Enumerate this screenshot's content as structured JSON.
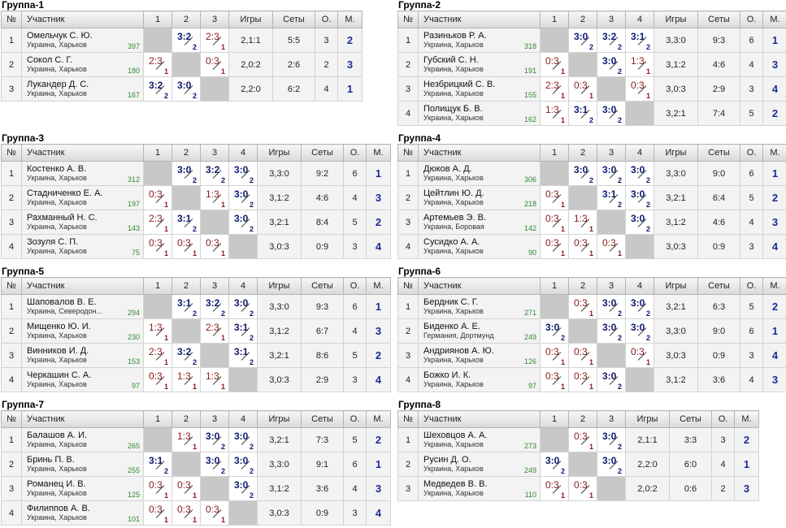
{
  "header_labels": {
    "no": "№",
    "name": "Участник",
    "games": "Игры",
    "sets": "Сеты",
    "points": "О.",
    "place": "М."
  },
  "groups": [
    {
      "title": "Группа-1",
      "players": [
        {
          "no": "1",
          "name": "Омельчук С. Ю.",
          "loc": "Украина, Харьков",
          "rating": "397",
          "results": [
            null,
            "3:2|2",
            "2:3|1"
          ],
          "games": "2,1:1",
          "sets": "5:5",
          "points": "3",
          "place": "2"
        },
        {
          "no": "2",
          "name": "Сокол С. Г.",
          "loc": "Украина, Харьков",
          "rating": "180",
          "results": [
            "2:3|1",
            null,
            "0:3|1"
          ],
          "games": "2,0:2",
          "sets": "2:6",
          "points": "2",
          "place": "3"
        },
        {
          "no": "3",
          "name": "Лукандер Д. С.",
          "loc": "Украина, Харьков",
          "rating": "167",
          "results": [
            "3:2|2",
            "3:0|2",
            null
          ],
          "games": "2,2:0",
          "sets": "6:2",
          "points": "4",
          "place": "1"
        }
      ]
    },
    {
      "title": "Группа-2",
      "players": [
        {
          "no": "1",
          "name": "Разиньков Р. А.",
          "loc": "Украина, Харьков",
          "rating": "318",
          "results": [
            null,
            "3:0|2",
            "3:2|2",
            "3:1|2"
          ],
          "games": "3,3:0",
          "sets": "9:3",
          "points": "6",
          "place": "1"
        },
        {
          "no": "2",
          "name": "Губский С. Н.",
          "loc": "Украина, Харьков",
          "rating": "191",
          "results": [
            "0:3|1",
            null,
            "3:0|2",
            "1:3|1"
          ],
          "games": "3,1:2",
          "sets": "4:6",
          "points": "4",
          "place": "3"
        },
        {
          "no": "3",
          "name": "Незбрицкий С. В.",
          "loc": "Украина, Харьков",
          "rating": "155",
          "results": [
            "2:3|1",
            "0:3|1",
            null,
            "0:3|1"
          ],
          "games": "3,0:3",
          "sets": "2:9",
          "points": "3",
          "place": "4"
        },
        {
          "no": "4",
          "name": "Полищук Б. В.",
          "loc": "Украина, Харьков",
          "rating": "162",
          "results": [
            "1:3|1",
            "3:1|2",
            "3:0|2",
            null
          ],
          "games": "3,2:1",
          "sets": "7:4",
          "points": "5",
          "place": "2"
        }
      ]
    },
    {
      "title": "Группа-3",
      "players": [
        {
          "no": "1",
          "name": "Костенко А. В.",
          "loc": "Украина, Харьков",
          "rating": "312",
          "results": [
            null,
            "3:0|2",
            "3:2|2",
            "3:0|2"
          ],
          "games": "3,3:0",
          "sets": "9:2",
          "points": "6",
          "place": "1"
        },
        {
          "no": "2",
          "name": "Стадниченко Е. А.",
          "loc": "Украина, Харьков",
          "rating": "197",
          "results": [
            "0:3|1",
            null,
            "1:3|1",
            "3:0|2"
          ],
          "games": "3,1:2",
          "sets": "4:6",
          "points": "4",
          "place": "3"
        },
        {
          "no": "3",
          "name": "Рахманный Н. С.",
          "loc": "Украина, Харьков",
          "rating": "143",
          "results": [
            "2:3|1",
            "3:1|2",
            null,
            "3:0|2"
          ],
          "games": "3,2:1",
          "sets": "8:4",
          "points": "5",
          "place": "2"
        },
        {
          "no": "4",
          "name": "Зозуля С. П.",
          "loc": "Украина, Харьков",
          "rating": "75",
          "results": [
            "0:3|1",
            "0:3|1",
            "0:3|1",
            null
          ],
          "games": "3,0:3",
          "sets": "0:9",
          "points": "3",
          "place": "4"
        }
      ]
    },
    {
      "title": "Группа-4",
      "players": [
        {
          "no": "1",
          "name": "Дюков А. Д.",
          "loc": "Украина, Харьков",
          "rating": "306",
          "results": [
            null,
            "3:0|2",
            "3:0|2",
            "3:0|2"
          ],
          "games": "3,3:0",
          "sets": "9:0",
          "points": "6",
          "place": "1"
        },
        {
          "no": "2",
          "name": "Цейтлин Ю. Д.",
          "loc": "Украина, Харьков",
          "rating": "218",
          "results": [
            "0:3|1",
            null,
            "3:1|2",
            "3:0|2"
          ],
          "games": "3,2:1",
          "sets": "6:4",
          "points": "5",
          "place": "2"
        },
        {
          "no": "3",
          "name": "Артемьев Э. В.",
          "loc": "Украина, Боровая",
          "rating": "142",
          "results": [
            "0:3|1",
            "1:3|1",
            null,
            "3:0|2"
          ],
          "games": "3,1:2",
          "sets": "4:6",
          "points": "4",
          "place": "3"
        },
        {
          "no": "4",
          "name": "Сусидко А. А.",
          "loc": "Украина, Харьков",
          "rating": "90",
          "results": [
            "0:3|1",
            "0:3|1",
            "0:3|1",
            null
          ],
          "games": "3,0:3",
          "sets": "0:9",
          "points": "3",
          "place": "4"
        }
      ]
    },
    {
      "title": "Группа-5",
      "players": [
        {
          "no": "1",
          "name": "Шаповалов В. Е.",
          "loc": "Украина, Северодон...",
          "rating": "294",
          "results": [
            null,
            "3:1|2",
            "3:2|2",
            "3:0|2"
          ],
          "games": "3,3:0",
          "sets": "9:3",
          "points": "6",
          "place": "1"
        },
        {
          "no": "2",
          "name": "Мищенко Ю. И.",
          "loc": "Украина, Харьков",
          "rating": "230",
          "results": [
            "1:3|1",
            null,
            "2:3|1",
            "3:1|2"
          ],
          "games": "3,1:2",
          "sets": "6:7",
          "points": "4",
          "place": "3"
        },
        {
          "no": "3",
          "name": "Винников И. Д.",
          "loc": "Украина, Харьков",
          "rating": "153",
          "results": [
            "2:3|1",
            "3:2|2",
            null,
            "3:1|2"
          ],
          "games": "3,2:1",
          "sets": "8:6",
          "points": "5",
          "place": "2"
        },
        {
          "no": "4",
          "name": "Черкашин С. А.",
          "loc": "Украина, Харьков",
          "rating": "97",
          "results": [
            "0:3|1",
            "1:3|1",
            "1:3|1",
            null
          ],
          "games": "3,0:3",
          "sets": "2:9",
          "points": "3",
          "place": "4"
        }
      ]
    },
    {
      "title": "Группа-6",
      "players": [
        {
          "no": "1",
          "name": "Бердник С. Г.",
          "loc": "Украина, Харьков",
          "rating": "271",
          "results": [
            null,
            "0:3|1",
            "3:0|2",
            "3:0|2"
          ],
          "games": "3,2:1",
          "sets": "6:3",
          "points": "5",
          "place": "2"
        },
        {
          "no": "2",
          "name": "Биденко А. Е.",
          "loc": "Германия, Дортмунд",
          "rating": "249",
          "results": [
            "3:0|2",
            null,
            "3:0|2",
            "3:0|2"
          ],
          "games": "3,3:0",
          "sets": "9:0",
          "points": "6",
          "place": "1"
        },
        {
          "no": "3",
          "name": "Андриянов А. Ю.",
          "loc": "Украина, Харьков",
          "rating": "126",
          "results": [
            "0:3|1",
            "0:3|1",
            null,
            "0:3|1"
          ],
          "games": "3,0:3",
          "sets": "0:9",
          "points": "3",
          "place": "4"
        },
        {
          "no": "4",
          "name": "Божко И. К.",
          "loc": "Украина, Харьков",
          "rating": "97",
          "results": [
            "0:3|1",
            "0:3|1",
            "3:0|2",
            null
          ],
          "games": "3,1:2",
          "sets": "3:6",
          "points": "4",
          "place": "3"
        }
      ]
    },
    {
      "title": "Группа-7",
      "players": [
        {
          "no": "1",
          "name": "Балашов А. И.",
          "loc": "Украина, Харьков",
          "rating": "265",
          "results": [
            null,
            "1:3|1",
            "3:0|2",
            "3:0|2"
          ],
          "games": "3,2:1",
          "sets": "7:3",
          "points": "5",
          "place": "2"
        },
        {
          "no": "2",
          "name": "Бринь П. В.",
          "loc": "Украина, Харьков",
          "rating": "255",
          "results": [
            "3:1|2",
            null,
            "3:0|2",
            "3:0|2"
          ],
          "games": "3,3:0",
          "sets": "9:1",
          "points": "6",
          "place": "1"
        },
        {
          "no": "3",
          "name": "Романец И. В.",
          "loc": "Украина, Харьков",
          "rating": "125",
          "results": [
            "0:3|1",
            "0:3|1",
            null,
            "3:0|2"
          ],
          "games": "3,1:2",
          "sets": "3:6",
          "points": "4",
          "place": "3"
        },
        {
          "no": "4",
          "name": "Филиппов А. В.",
          "loc": "Украина, Харьков",
          "rating": "101",
          "results": [
            "0:3|1",
            "0:3|1",
            "0:3|1",
            null
          ],
          "games": "3,0:3",
          "sets": "0:9",
          "points": "3",
          "place": "4"
        }
      ]
    },
    {
      "title": "Группа-8",
      "players": [
        {
          "no": "1",
          "name": "Шеховцов А. А.",
          "loc": "Украина, Харьков",
          "rating": "273",
          "results": [
            null,
            "0:3|1",
            "3:0|2"
          ],
          "games": "2,1:1",
          "sets": "3:3",
          "points": "3",
          "place": "2"
        },
        {
          "no": "2",
          "name": "Русин Д. О.",
          "loc": "Украина, Харьков",
          "rating": "249",
          "results": [
            "3:0|2",
            null,
            "3:0|2"
          ],
          "games": "2,2:0",
          "sets": "6:0",
          "points": "4",
          "place": "1"
        },
        {
          "no": "3",
          "name": "Медведев В. В.",
          "loc": "Украина, Харьков",
          "rating": "110",
          "results": [
            "0:3|1",
            "0:3|1",
            null
          ],
          "games": "2,0:2",
          "sets": "0:6",
          "points": "2",
          "place": "3"
        }
      ]
    }
  ]
}
